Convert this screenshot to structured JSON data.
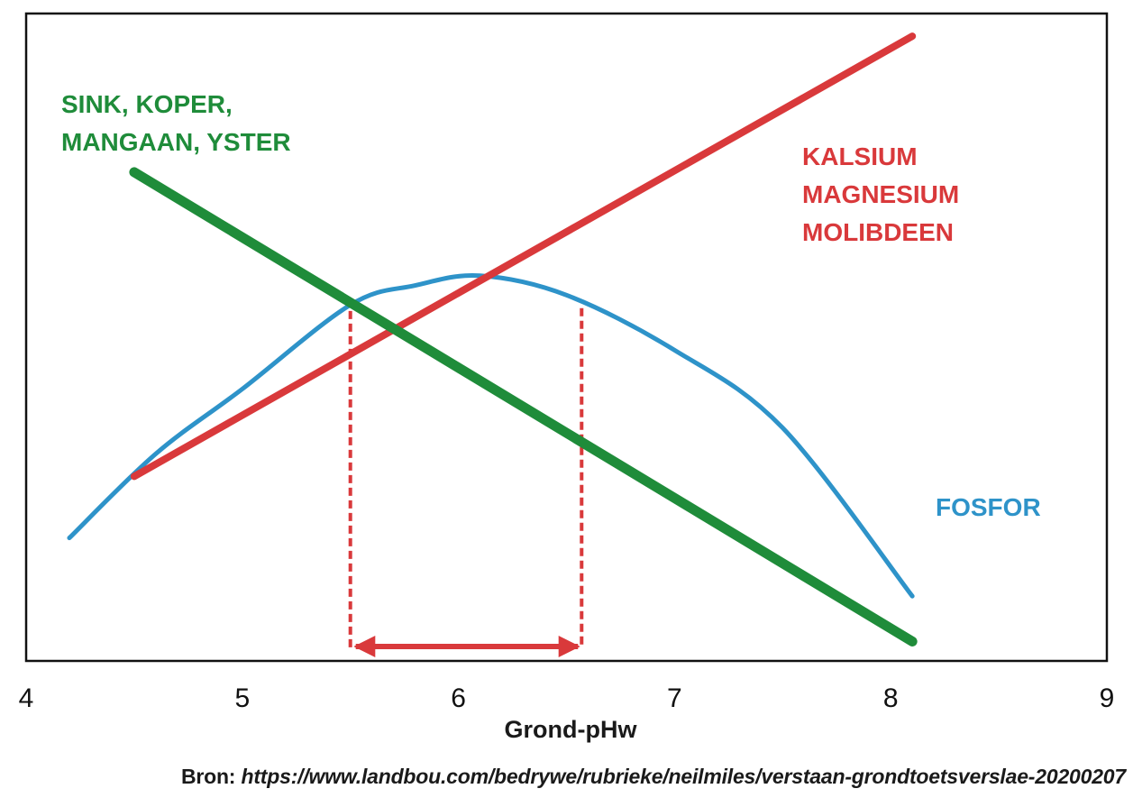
{
  "chart_data": {
    "type": "line",
    "title": "",
    "xlabel": "Grond-pHw",
    "ylabel": "",
    "xlim": [
      4,
      9
    ],
    "ylim": [
      0,
      100
    ],
    "x_ticks": [
      "4",
      "5",
      "6",
      "7",
      "8",
      "9"
    ],
    "grid": false,
    "legend": "none",
    "series": [
      {
        "name": "SINK, KOPER, MANGAAN, YSTER",
        "label_lines": [
          "SINK, KOPER,",
          "MANGAAN, YSTER"
        ],
        "color": "#1f8c3a",
        "shape": "line",
        "x": [
          4.5,
          8.1
        ],
        "y": [
          75.5,
          3
        ]
      },
      {
        "name": "KALSIUM MAGNESIUM MOLIBDEEN",
        "label_lines": [
          "KALSIUM",
          "MAGNESIUM",
          "MOLIBDEEN"
        ],
        "color": "#d9393b",
        "shape": "line",
        "x": [
          4.5,
          8.1
        ],
        "y": [
          28.5,
          96.5
        ]
      },
      {
        "name": "FOSFOR",
        "label_lines": [
          "FOSFOR"
        ],
        "color": "#2e93c9",
        "shape": "curve",
        "x": [
          4.2,
          4.6,
          5.0,
          5.5,
          5.8,
          6.1,
          6.5,
          7.0,
          7.5,
          8.1
        ],
        "y": [
          19,
          32,
          42,
          55,
          58,
          59.5,
          56.5,
          48,
          36,
          10
        ]
      }
    ],
    "annotations": {
      "optimal_range_x": [
        5.5,
        6.57
      ],
      "range_color": "#d9393b",
      "dashed_line_tops_y": [
        56,
        54.5
      ]
    }
  },
  "source": {
    "prefix": "Bron:",
    "url": "https://www.landbou.com/bedrywe/rubrieke/neilmiles/verstaan-grondtoetsverslae-20200207"
  }
}
